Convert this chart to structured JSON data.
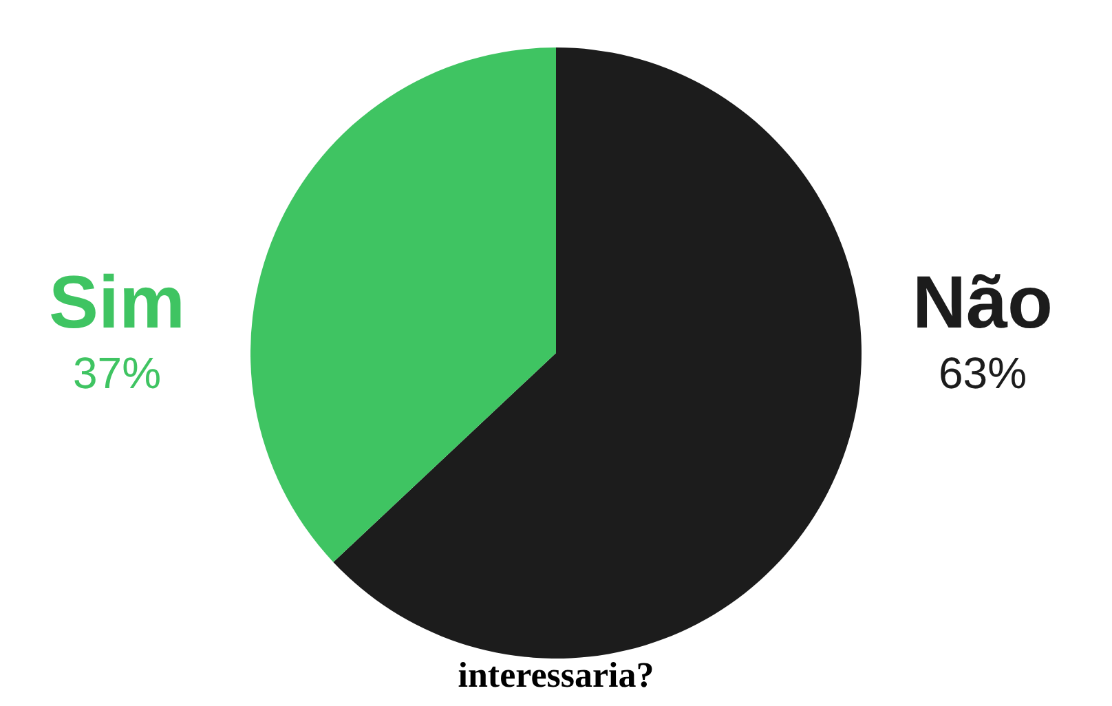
{
  "chart_data": {
    "type": "pie",
    "title": "interessaria?",
    "categories": [
      "Sim",
      "Não"
    ],
    "values": [
      37,
      63
    ],
    "colors": [
      "#3fc462",
      "#1c1c1c"
    ],
    "value_labels": [
      "37%",
      "63%"
    ]
  }
}
